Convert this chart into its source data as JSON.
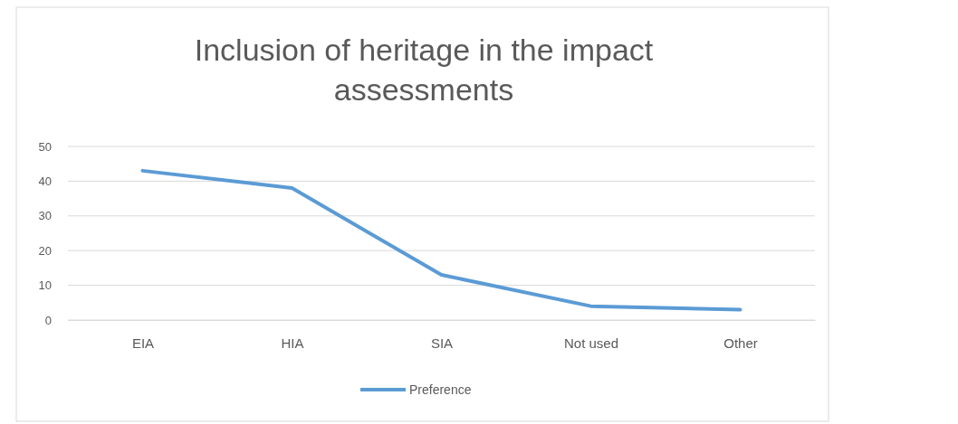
{
  "chart_data": {
    "type": "line",
    "title": "Inclusion of heritage in the impact assessments",
    "categories": [
      "EIA",
      "HIA",
      "SIA",
      "Not used",
      "Other"
    ],
    "series": [
      {
        "name": "Preference",
        "color": "#5b9bd5",
        "values": [
          43,
          38,
          13,
          4,
          3
        ]
      }
    ],
    "ylim": [
      0,
      50
    ],
    "yticks": [
      0,
      10,
      20,
      30,
      40,
      50
    ],
    "grid": "y",
    "legend": "bottom",
    "marker": "none"
  }
}
